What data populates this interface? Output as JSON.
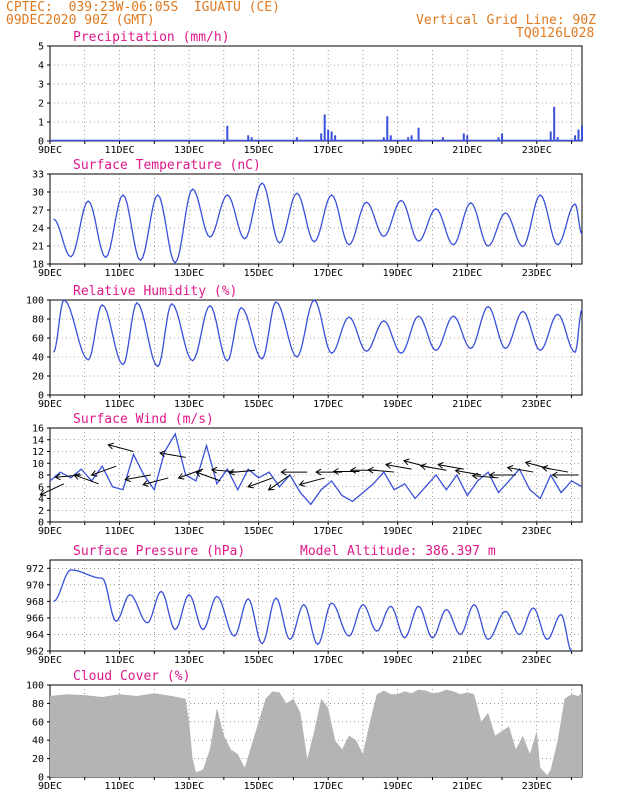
{
  "header": {
    "line1": "CPTEC:  039:23W-06:05S  IGUATU (CE)",
    "line2": "09DEC2020 90Z (GMT)",
    "vgrid": "Vertical Grid Line: 90Z",
    "code": "TQ0126L028"
  },
  "colors": {
    "header": "#e07a20",
    "title": "#e0188a",
    "line": "#3a50d8",
    "cloud": "#b4b4b4",
    "grid": "#555555"
  },
  "x_tick_labels": [
    "9DEC",
    "11DEC",
    "13DEC",
    "15DEC",
    "17DEC",
    "19DEC",
    "21DEC",
    "23DEC"
  ],
  "chart_data": [
    {
      "type": "bar",
      "title": "Precipitation (mm/h)",
      "ylim": [
        0,
        5
      ],
      "yticks": [
        0,
        1,
        2,
        3,
        4,
        5
      ],
      "xlim_days": [
        9,
        24.3
      ],
      "values": [
        [
          14.1,
          0.8
        ],
        [
          14.7,
          0.3
        ],
        [
          14.8,
          0.2
        ],
        [
          16.1,
          0.2
        ],
        [
          16.8,
          0.4
        ],
        [
          16.9,
          1.4
        ],
        [
          17.0,
          0.6
        ],
        [
          17.1,
          0.5
        ],
        [
          17.2,
          0.3
        ],
        [
          18.6,
          0.2
        ],
        [
          18.7,
          1.3
        ],
        [
          18.8,
          0.3
        ],
        [
          19.3,
          0.2
        ],
        [
          19.4,
          0.3
        ],
        [
          19.6,
          0.7
        ],
        [
          20.3,
          0.2
        ],
        [
          20.9,
          0.4
        ],
        [
          21.0,
          0.3
        ],
        [
          21.9,
          0.2
        ],
        [
          22.0,
          0.4
        ],
        [
          23.4,
          0.5
        ],
        [
          23.5,
          1.8
        ],
        [
          23.6,
          0.2
        ],
        [
          24.1,
          0.3
        ],
        [
          24.2,
          0.6
        ],
        [
          24.3,
          0.8
        ]
      ]
    },
    {
      "type": "line",
      "title": "Surface Temperature (nC)",
      "ylim": [
        18,
        33
      ],
      "yticks": [
        18,
        21,
        24,
        27,
        30,
        33
      ],
      "xlim_days": [
        9,
        24.3
      ],
      "minima": [
        [
          9.6,
          19.2
        ],
        [
          10.6,
          19.1
        ],
        [
          11.6,
          18.6
        ],
        [
          12.6,
          18.2
        ],
        [
          13.6,
          22.5
        ],
        [
          14.6,
          22.2
        ],
        [
          15.6,
          21.5
        ],
        [
          16.6,
          21.7
        ],
        [
          17.6,
          21.2
        ],
        [
          18.6,
          22.6
        ],
        [
          19.6,
          21.8
        ],
        [
          20.6,
          21.2
        ],
        [
          21.6,
          21.0
        ],
        [
          22.6,
          20.9
        ],
        [
          23.6,
          21.2
        ]
      ],
      "maxima": [
        [
          9.1,
          25.5
        ],
        [
          10.1,
          28.5
        ],
        [
          11.1,
          29.5
        ],
        [
          12.1,
          29.5
        ],
        [
          13.1,
          30.5
        ],
        [
          14.1,
          29.5
        ],
        [
          15.1,
          31.5
        ],
        [
          16.1,
          29.8
        ],
        [
          17.1,
          29.5
        ],
        [
          18.1,
          28.3
        ],
        [
          19.1,
          28.6
        ],
        [
          20.1,
          27.2
        ],
        [
          21.1,
          28.2
        ],
        [
          22.1,
          26.5
        ],
        [
          23.1,
          29.5
        ],
        [
          24.1,
          28.0
        ],
        [
          24.3,
          23.0
        ]
      ]
    },
    {
      "type": "line",
      "title": "Relative Humidity (%)",
      "ylim": [
        0,
        100
      ],
      "yticks": [
        0,
        20,
        40,
        60,
        80,
        100
      ],
      "xlim_days": [
        9,
        24.3
      ],
      "minima": [
        [
          9.1,
          45
        ],
        [
          10.1,
          37
        ],
        [
          11.1,
          32
        ],
        [
          12.1,
          30
        ],
        [
          13.1,
          36
        ],
        [
          14.1,
          36
        ],
        [
          15.1,
          38
        ],
        [
          16.1,
          40
        ],
        [
          17.1,
          44
        ],
        [
          18.1,
          46
        ],
        [
          19.1,
          44
        ],
        [
          20.1,
          47
        ],
        [
          21.1,
          49
        ],
        [
          22.1,
          49
        ],
        [
          23.1,
          47
        ],
        [
          24.1,
          45
        ]
      ],
      "maxima": [
        [
          9.4,
          100
        ],
        [
          10.5,
          95
        ],
        [
          11.5,
          97
        ],
        [
          12.5,
          96
        ],
        [
          13.6,
          94
        ],
        [
          14.5,
          92
        ],
        [
          15.5,
          98
        ],
        [
          16.6,
          100
        ],
        [
          17.6,
          82
        ],
        [
          18.6,
          78
        ],
        [
          19.6,
          83
        ],
        [
          20.6,
          83
        ],
        [
          21.6,
          93
        ],
        [
          22.6,
          88
        ],
        [
          23.6,
          85
        ],
        [
          24.3,
          90
        ]
      ]
    },
    {
      "type": "line",
      "title": "Surface Wind (m/s)",
      "ylim": [
        0,
        16
      ],
      "yticks": [
        0,
        2,
        4,
        6,
        8,
        10,
        12,
        14,
        16
      ],
      "xlim_days": [
        9,
        24.3
      ],
      "values": [
        [
          9.0,
          7.0
        ],
        [
          9.3,
          8.5
        ],
        [
          9.6,
          7.5
        ],
        [
          9.9,
          9.0
        ],
        [
          10.2,
          7.0
        ],
        [
          10.5,
          9.5
        ],
        [
          10.8,
          6.0
        ],
        [
          11.1,
          5.5
        ],
        [
          11.4,
          11.5
        ],
        [
          11.7,
          8.0
        ],
        [
          12.0,
          5.5
        ],
        [
          12.3,
          12.0
        ],
        [
          12.6,
          15.0
        ],
        [
          12.9,
          8.0
        ],
        [
          13.2,
          7.0
        ],
        [
          13.5,
          13.0
        ],
        [
          13.8,
          6.5
        ],
        [
          14.1,
          9.0
        ],
        [
          14.4,
          5.5
        ],
        [
          14.7,
          9.0
        ],
        [
          15.0,
          7.5
        ],
        [
          15.3,
          8.5
        ],
        [
          15.6,
          6.0
        ],
        [
          15.9,
          8.0
        ],
        [
          16.2,
          5.0
        ],
        [
          16.5,
          3.0
        ],
        [
          16.8,
          5.5
        ],
        [
          17.1,
          7.0
        ],
        [
          17.4,
          4.5
        ],
        [
          17.7,
          3.5
        ],
        [
          18.0,
          5.0
        ],
        [
          18.3,
          6.5
        ],
        [
          18.6,
          8.5
        ],
        [
          18.9,
          5.5
        ],
        [
          19.2,
          6.5
        ],
        [
          19.5,
          4.0
        ],
        [
          19.8,
          6.0
        ],
        [
          20.1,
          8.0
        ],
        [
          20.4,
          5.5
        ],
        [
          20.7,
          8.0
        ],
        [
          21.0,
          4.5
        ],
        [
          21.3,
          7.0
        ],
        [
          21.6,
          8.5
        ],
        [
          21.9,
          5.0
        ],
        [
          22.2,
          7.0
        ],
        [
          22.5,
          9.0
        ],
        [
          22.8,
          5.5
        ],
        [
          23.1,
          4.0
        ],
        [
          23.4,
          8.0
        ],
        [
          23.7,
          5.0
        ],
        [
          24.0,
          7.0
        ],
        [
          24.3,
          6.0
        ]
      ],
      "vectors": [
        [
          9.4,
          6.5,
          205
        ],
        [
          9.9,
          8.0,
          185
        ],
        [
          10.4,
          6.5,
          160
        ],
        [
          10.9,
          9.5,
          200
        ],
        [
          11.4,
          12.0,
          165
        ],
        [
          11.9,
          8.0,
          190
        ],
        [
          12.4,
          7.5,
          195
        ],
        [
          12.9,
          11.0,
          170
        ],
        [
          13.4,
          9.0,
          200
        ],
        [
          13.9,
          7.0,
          160
        ],
        [
          14.4,
          8.5,
          175
        ],
        [
          14.9,
          8.8,
          185
        ],
        [
          15.4,
          7.5,
          200
        ],
        [
          15.9,
          8.0,
          215
        ],
        [
          16.4,
          8.5,
          180
        ],
        [
          16.9,
          7.5,
          195
        ],
        [
          17.4,
          8.5,
          180
        ],
        [
          17.9,
          8.6,
          180
        ],
        [
          18.4,
          8.8,
          180
        ],
        [
          18.9,
          8.5,
          175
        ],
        [
          19.4,
          9.0,
          170
        ],
        [
          19.9,
          9.3,
          165
        ],
        [
          20.4,
          8.8,
          170
        ],
        [
          20.9,
          9.0,
          170
        ],
        [
          21.4,
          8.0,
          170
        ],
        [
          21.9,
          7.5,
          175
        ],
        [
          22.4,
          8.0,
          180
        ],
        [
          22.9,
          8.5,
          170
        ],
        [
          23.4,
          9.0,
          165
        ],
        [
          23.9,
          8.5,
          170
        ],
        [
          24.2,
          8.0,
          180
        ]
      ]
    },
    {
      "type": "line",
      "title": "Surface Pressure (hPa)",
      "annotation": "Model Altitude: 386.397 m",
      "ylim": [
        962,
        973
      ],
      "yticks": [
        962,
        964,
        966,
        968,
        970,
        972
      ],
      "xlim_days": [
        9,
        24.3
      ],
      "maxima": [
        [
          9.6,
          971.8
        ],
        [
          10.5,
          970.8
        ],
        [
          11.3,
          968.8
        ],
        [
          12.2,
          969.2
        ],
        [
          13.0,
          968.8
        ],
        [
          13.8,
          968.6
        ],
        [
          14.7,
          968.3
        ],
        [
          15.5,
          968.4
        ],
        [
          16.3,
          967.6
        ],
        [
          17.1,
          967.8
        ],
        [
          18.0,
          967.6
        ],
        [
          18.8,
          967.4
        ],
        [
          19.6,
          967.4
        ],
        [
          20.4,
          967.0
        ],
        [
          21.2,
          967.6
        ],
        [
          22.1,
          966.8
        ],
        [
          22.9,
          967.2
        ],
        [
          23.7,
          966.4
        ]
      ],
      "minima": [
        [
          9.1,
          968.0
        ],
        [
          10.9,
          965.6
        ],
        [
          11.8,
          965.4
        ],
        [
          12.6,
          964.6
        ],
        [
          13.4,
          964.6
        ],
        [
          14.3,
          963.8
        ],
        [
          15.1,
          962.9
        ],
        [
          15.9,
          963.4
        ],
        [
          16.7,
          962.8
        ],
        [
          17.6,
          963.8
        ],
        [
          18.4,
          964.4
        ],
        [
          19.2,
          963.6
        ],
        [
          20.0,
          963.6
        ],
        [
          20.8,
          964.0
        ],
        [
          21.6,
          963.4
        ],
        [
          22.5,
          964.0
        ],
        [
          23.3,
          963.4
        ],
        [
          24.0,
          962.0
        ]
      ]
    },
    {
      "type": "area",
      "title": "Cloud Cover (%)",
      "ylim": [
        0,
        100
      ],
      "yticks": [
        0,
        20,
        40,
        60,
        80,
        100
      ],
      "xlim_days": [
        9,
        24.3
      ],
      "values": [
        [
          9.0,
          88
        ],
        [
          9.5,
          90
        ],
        [
          10.0,
          89
        ],
        [
          10.5,
          87
        ],
        [
          11.0,
          90
        ],
        [
          11.5,
          88
        ],
        [
          12.0,
          91
        ],
        [
          12.5,
          88
        ],
        [
          12.9,
          85
        ],
        [
          13.0,
          60
        ],
        [
          13.1,
          20
        ],
        [
          13.2,
          5
        ],
        [
          13.4,
          8
        ],
        [
          13.6,
          30
        ],
        [
          13.8,
          75
        ],
        [
          14.0,
          45
        ],
        [
          14.2,
          30
        ],
        [
          14.4,
          25
        ],
        [
          14.6,
          10
        ],
        [
          14.8,
          35
        ],
        [
          15.0,
          60
        ],
        [
          15.2,
          85
        ],
        [
          15.4,
          93
        ],
        [
          15.6,
          92
        ],
        [
          15.8,
          80
        ],
        [
          16.0,
          85
        ],
        [
          16.2,
          70
        ],
        [
          16.4,
          20
        ],
        [
          16.6,
          50
        ],
        [
          16.8,
          85
        ],
        [
          17.0,
          75
        ],
        [
          17.2,
          40
        ],
        [
          17.4,
          30
        ],
        [
          17.6,
          45
        ],
        [
          17.8,
          40
        ],
        [
          18.0,
          25
        ],
        [
          18.2,
          60
        ],
        [
          18.4,
          90
        ],
        [
          18.6,
          94
        ],
        [
          18.8,
          90
        ],
        [
          19.0,
          90
        ],
        [
          19.2,
          93
        ],
        [
          19.4,
          91
        ],
        [
          19.6,
          95
        ],
        [
          19.8,
          94
        ],
        [
          20.0,
          91
        ],
        [
          20.2,
          92
        ],
        [
          20.4,
          95
        ],
        [
          20.6,
          93
        ],
        [
          20.8,
          90
        ],
        [
          21.0,
          92
        ],
        [
          21.2,
          90
        ],
        [
          21.4,
          60
        ],
        [
          21.6,
          70
        ],
        [
          21.8,
          45
        ],
        [
          22.0,
          50
        ],
        [
          22.2,
          55
        ],
        [
          22.4,
          30
        ],
        [
          22.6,
          45
        ],
        [
          22.8,
          25
        ],
        [
          23.0,
          50
        ],
        [
          23.1,
          10
        ],
        [
          23.3,
          2
        ],
        [
          23.4,
          8
        ],
        [
          23.6,
          40
        ],
        [
          23.8,
          85
        ],
        [
          24.0,
          90
        ],
        [
          24.2,
          88
        ],
        [
          24.3,
          92
        ]
      ]
    }
  ]
}
